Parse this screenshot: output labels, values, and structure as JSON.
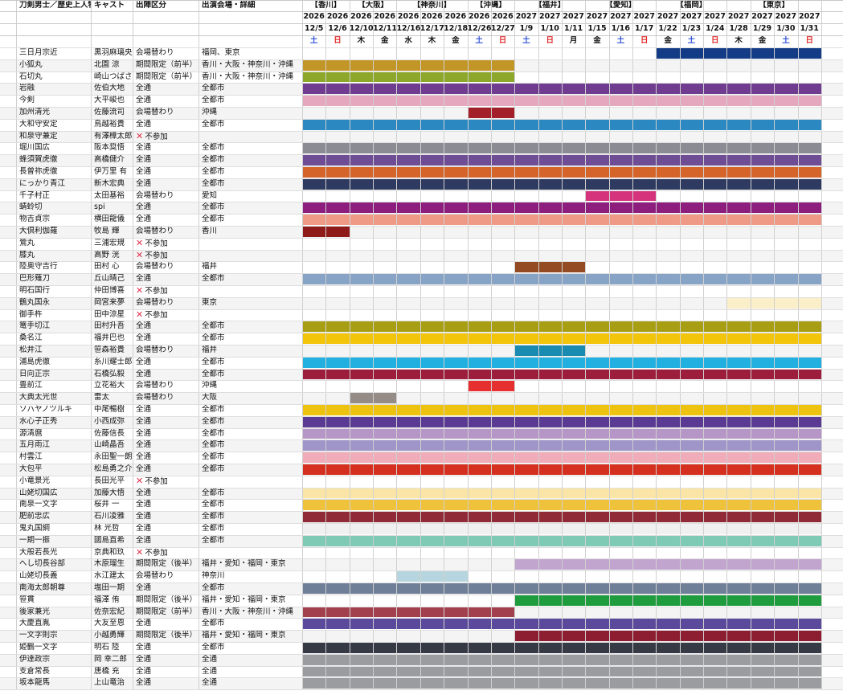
{
  "header": {
    "columns": [
      "刀剣男士／歴史上人物",
      "キャスト",
      "出陣区分",
      "出演会場・詳細"
    ],
    "venues": [
      {
        "label": "【香川】",
        "start": 0,
        "end": 2
      },
      {
        "label": "【大阪】",
        "start": 2,
        "end": 4
      },
      {
        "label": "【神奈川】",
        "start": 4,
        "end": 7
      },
      {
        "label": "【沖縄】",
        "start": 7,
        "end": 9
      },
      {
        "label": "【福井】",
        "start": 9,
        "end": 12
      },
      {
        "label": "【愛知】",
        "start": 12,
        "end": 15
      },
      {
        "label": "【福岡】",
        "start": 15,
        "end": 18
      },
      {
        "label": "【東京】",
        "start": 18,
        "end": 22
      }
    ],
    "years": [
      "2026",
      "2026",
      "2026",
      "2026",
      "2026",
      "2026",
      "2026",
      "2026",
      "2026",
      "2027",
      "2027",
      "2027",
      "2027",
      "2027",
      "2027",
      "2027",
      "2027",
      "2027",
      "2027",
      "2027",
      "2027",
      "2027"
    ],
    "dates": [
      "12/5",
      "12/6",
      "12/10",
      "12/11",
      "12/16",
      "12/17",
      "12/18",
      "12/26",
      "12/27",
      "1/9",
      "1/10",
      "1/11",
      "1/15",
      "1/16",
      "1/17",
      "1/22",
      "1/23",
      "1/24",
      "1/28",
      "1/29",
      "1/30",
      "1/31"
    ],
    "weekdays": [
      "土",
      "日",
      "木",
      "金",
      "水",
      "木",
      "金",
      "土",
      "日",
      "土",
      "日",
      "月",
      "金",
      "土",
      "日",
      "金",
      "土",
      "日",
      "木",
      "金",
      "土",
      "日"
    ],
    "weekday_colors": {
      "土": "#2e4fd8",
      "日": "#e02a2a",
      "default": "#111111"
    }
  },
  "not_participating": "不参加",
  "rows": [
    {
      "name": "三日月宗近",
      "cast": "黒羽麻璃央",
      "kind": "会場替わり",
      "venue": "福岡、東京",
      "color": "#143c86",
      "shows": [
        15,
        22
      ]
    },
    {
      "name": "小狐丸",
      "cast": "北園 涼",
      "kind": "期間限定（前半）",
      "venue": "香川・大阪・神奈川・沖縄",
      "color": "#c29527",
      "shows": [
        0,
        9
      ]
    },
    {
      "name": "石切丸",
      "cast": "崎山つばさ",
      "kind": "期間限定（前半）",
      "venue": "香川・大阪・神奈川・沖縄",
      "color": "#8da72a",
      "shows": [
        0,
        9
      ]
    },
    {
      "name": "岩融",
      "cast": "佐伯大地",
      "kind": "全通",
      "venue": "全都市",
      "color": "#6f3c8f",
      "shows": [
        0,
        22
      ]
    },
    {
      "name": "今剣",
      "cast": "大平峻也",
      "kind": "全通",
      "venue": "全都市",
      "color": "#e4a7be",
      "shows": [
        0,
        22
      ]
    },
    {
      "name": "加州清光",
      "cast": "佐藤流司",
      "kind": "会場替わり",
      "venue": "沖縄",
      "color": "#a31f2a",
      "shows": [
        7,
        9
      ]
    },
    {
      "name": "大和守安定",
      "cast": "鳥越裕貴",
      "kind": "全通",
      "venue": "全都市",
      "color": "#2b88c0",
      "shows": [
        0,
        22
      ]
    },
    {
      "name": "和泉守兼定",
      "cast": "有澤樟太郎",
      "kind": "",
      "venue": "",
      "ng": true
    },
    {
      "name": "堀川国広",
      "cast": "阪本奨悟",
      "kind": "全通",
      "venue": "全都市",
      "color": "#8b8b94",
      "shows": [
        0,
        22
      ]
    },
    {
      "name": "蜂須賀虎徹",
      "cast": "高橋健介",
      "kind": "全通",
      "venue": "全都市",
      "color": "#6e4d95",
      "shows": [
        0,
        22
      ]
    },
    {
      "name": "長曽祢虎徹",
      "cast": "伊万里 有",
      "kind": "全通",
      "venue": "全都市",
      "color": "#d4642a",
      "shows": [
        0,
        22
      ]
    },
    {
      "name": "にっかり青江",
      "cast": "新木宏典",
      "kind": "全通",
      "venue": "全都市",
      "color": "#2e3a5f",
      "shows": [
        0,
        22
      ]
    },
    {
      "name": "千子村正",
      "cast": "太田基裕",
      "kind": "会場替わり",
      "venue": "愛知",
      "color": "#d6337d",
      "shows": [
        12,
        15
      ]
    },
    {
      "name": "蜻蛉切",
      "cast": "spi",
      "kind": "全通",
      "venue": "全都市",
      "color": "#8d1e7d",
      "shows": [
        0,
        22
      ]
    },
    {
      "name": "物吉貞宗",
      "cast": "横田龍儀",
      "kind": "全通",
      "venue": "全都市",
      "color": "#ee9a87",
      "shows": [
        0,
        22
      ]
    },
    {
      "name": "大倶利伽羅",
      "cast": "牧島 輝",
      "kind": "会場替わり",
      "venue": "香川",
      "color": "#8e1a1a",
      "shows": [
        0,
        2
      ]
    },
    {
      "name": "鶯丸",
      "cast": "三浦宏規",
      "kind": "",
      "venue": "",
      "ng": true
    },
    {
      "name": "膝丸",
      "cast": "高野 洸",
      "kind": "",
      "venue": "",
      "ng": true
    },
    {
      "name": "陸奥守吉行",
      "cast": "田村 心",
      "kind": "会場替わり",
      "venue": "福井",
      "color": "#944a22",
      "shows": [
        9,
        12
      ]
    },
    {
      "name": "巴形薙刀",
      "cast": "丘山晴己",
      "kind": "全通",
      "venue": "全都市",
      "color": "#87a4c7",
      "shows": [
        0,
        22
      ]
    },
    {
      "name": "明石国行",
      "cast": "仲田博喜",
      "kind": "",
      "venue": "",
      "ng": true
    },
    {
      "name": "鶴丸国永",
      "cast": "岡宮来夢",
      "kind": "会場替わり",
      "venue": "東京",
      "color": "#fbefc9",
      "shows": [
        18,
        22
      ]
    },
    {
      "name": "御手杵",
      "cast": "田中涼星",
      "kind": "",
      "venue": "",
      "ng": true
    },
    {
      "name": "篭手切江",
      "cast": "田村升吾",
      "kind": "全通",
      "venue": "全都市",
      "color": "#a89e14",
      "shows": [
        0,
        22
      ]
    },
    {
      "name": "桑名江",
      "cast": "福井巴也",
      "kind": "全通",
      "venue": "全都市",
      "color": "#f2c40a",
      "shows": [
        0,
        22
      ]
    },
    {
      "name": "松井江",
      "cast": "笹森裕貴",
      "kind": "会場替わり",
      "venue": "福井",
      "color": "#1a8bb0",
      "shows": [
        9,
        12
      ]
    },
    {
      "name": "浦島虎徹",
      "cast": "糸川耀士郎",
      "kind": "全通",
      "venue": "全都市",
      "color": "#22b0e0",
      "shows": [
        0,
        22
      ]
    },
    {
      "name": "日向正宗",
      "cast": "石橋弘毅",
      "kind": "全通",
      "venue": "全都市",
      "color": "#9d1e3c",
      "shows": [
        0,
        22
      ]
    },
    {
      "name": "豊前江",
      "cast": "立花裕大",
      "kind": "会場替わり",
      "venue": "沖縄",
      "color": "#e62f2f",
      "shows": [
        7,
        9
      ]
    },
    {
      "name": "大典太光世",
      "cast": "雷太",
      "kind": "会場替わり",
      "venue": "大阪",
      "color": "#958c88",
      "shows": [
        2,
        4
      ]
    },
    {
      "name": "ソハヤノツルキ",
      "cast": "中尾暢樹",
      "kind": "全通",
      "venue": "全都市",
      "color": "#eec310",
      "shows": [
        0,
        22
      ]
    },
    {
      "name": "水心子正秀",
      "cast": "小西成弥",
      "kind": "全通",
      "venue": "全都市",
      "color": "#5a3a92",
      "shows": [
        0,
        22
      ]
    },
    {
      "name": "源清麿",
      "cast": "佐藤信長",
      "kind": "全通",
      "venue": "全都市",
      "color": "#b596c6",
      "shows": [
        0,
        22
      ]
    },
    {
      "name": "五月雨江",
      "cast": "山崎晶吾",
      "kind": "全通",
      "venue": "全都市",
      "color": "#a095c8",
      "shows": [
        0,
        22
      ]
    },
    {
      "name": "村雲江",
      "cast": "永田聖一朗",
      "kind": "全通",
      "venue": "全都市",
      "color": "#f0acb8",
      "shows": [
        0,
        22
      ]
    },
    {
      "name": "大包平",
      "cast": "松島勇之介",
      "kind": "全通",
      "venue": "全都市",
      "color": "#d5301f",
      "shows": [
        0,
        22
      ]
    },
    {
      "name": "小竜景光",
      "cast": "長田光平",
      "kind": "",
      "venue": "",
      "ng": true
    },
    {
      "name": "山姥切国広",
      "cast": "加藤大悟",
      "kind": "全通",
      "venue": "全都市",
      "color": "#fbe5a6",
      "shows": [
        0,
        22
      ]
    },
    {
      "name": "南泉一文字",
      "cast": "桜井 一",
      "kind": "全通",
      "venue": "全都市",
      "color": "#eec23a",
      "shows": [
        0,
        22
      ]
    },
    {
      "name": "肥前忠広",
      "cast": "石川凌雅",
      "kind": "全通",
      "venue": "全都市",
      "color": "#902a36",
      "shows": [
        0,
        22
      ]
    },
    {
      "name": "鬼丸国綱",
      "cast": "林 光哲",
      "kind": "全通",
      "venue": "全都市",
      "color": "#f0f0f0",
      "shows": [
        0,
        22
      ]
    },
    {
      "name": "一期一振",
      "cast": "國島直希",
      "kind": "全通",
      "venue": "全都市",
      "color": "#7fcab5",
      "shows": [
        0,
        22
      ]
    },
    {
      "name": "大般若長光",
      "cast": "京典和玖",
      "kind": "",
      "venue": "",
      "ng": true
    },
    {
      "name": "へし切長谷部",
      "cast": "木原瑠生",
      "kind": "期間限定（後半）",
      "venue": "福井・愛知・福岡・東京",
      "color": "#c1a5ce",
      "shows": [
        9,
        22
      ]
    },
    {
      "name": "山姥切長義",
      "cast": "水江建太",
      "kind": "会場替わり",
      "venue": "神奈川",
      "color": "#b6d5de",
      "shows": [
        4,
        7
      ]
    },
    {
      "name": "南海太郎朝尊",
      "cast": "塩田一期",
      "kind": "全通",
      "venue": "全都市",
      "color": "#6f7f98",
      "shows": [
        0,
        22
      ]
    },
    {
      "name": "笹貫",
      "cast": "福澤 侑",
      "kind": "期間限定（後半）",
      "venue": "福井・愛知・福岡・東京",
      "color": "#1e9c3e",
      "shows": [
        9,
        22
      ]
    },
    {
      "name": "後家兼光",
      "cast": "佐奈宏紀",
      "kind": "期間限定（前半）",
      "venue": "香川・大阪・神奈川・沖縄",
      "color": "#a3404e",
      "shows": [
        0,
        9
      ]
    },
    {
      "name": "大慶直胤",
      "cast": "大友至恩",
      "kind": "全通",
      "venue": "全都市",
      "color": "#5b4a9c",
      "shows": [
        0,
        22
      ]
    },
    {
      "name": "一文字則宗",
      "cast": "小越勇輝",
      "kind": "期間限定（後半）",
      "venue": "福井・愛知・福岡・東京",
      "color": "#8d1e32",
      "shows": [
        9,
        22
      ]
    },
    {
      "name": "姫鶴一文字",
      "cast": "明石 陸",
      "kind": "全通",
      "venue": "全都市",
      "color": "#363a44",
      "shows": [
        0,
        22
      ]
    },
    {
      "name": "伊達政宗",
      "cast": "岡 幸二郎",
      "kind": "全通",
      "venue": "全通",
      "color": "#9a9ca0",
      "shows": [
        0,
        22
      ]
    },
    {
      "name": "支倉常長",
      "cast": "唐橋 充",
      "kind": "全通",
      "venue": "全通",
      "color": "#9a9ca0",
      "shows": [
        0,
        22
      ]
    },
    {
      "name": "坂本龍馬",
      "cast": "上山竜治",
      "kind": "全通",
      "venue": "全通",
      "color": "#9a9ca0",
      "shows": [
        0,
        22
      ]
    }
  ]
}
